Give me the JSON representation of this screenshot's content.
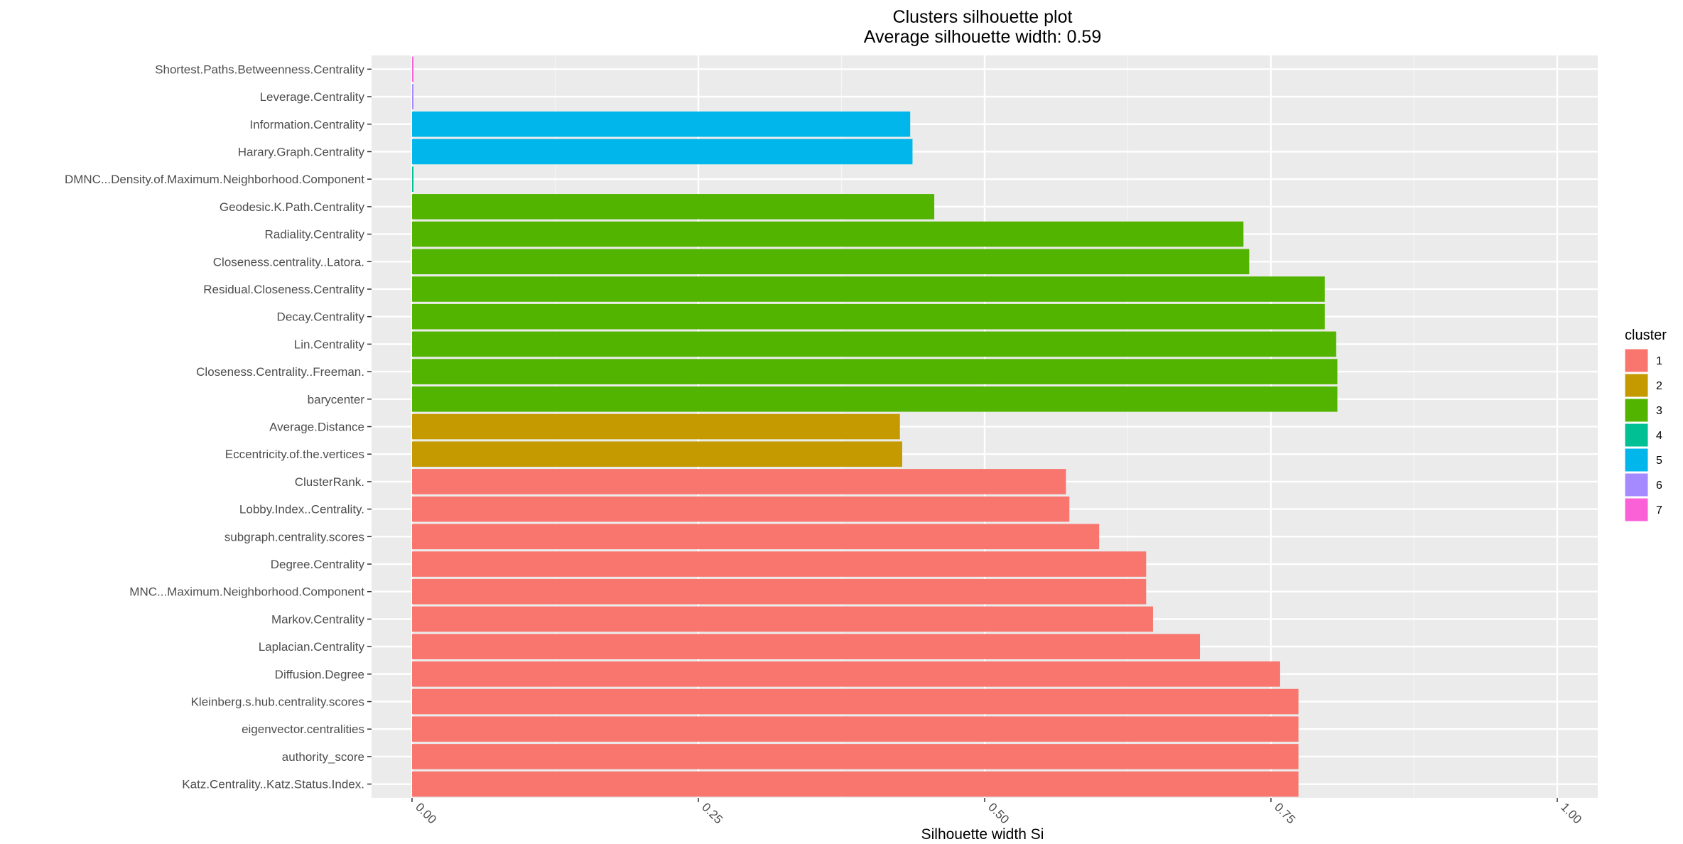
{
  "chart_data": {
    "type": "bar",
    "orientation": "horizontal",
    "title": "Clusters silhouette plot",
    "subtitle": "Average silhouette width: 0.59",
    "xlabel": "Silhouette width Si",
    "ylabel": "",
    "xlim": [
      -0.0,
      1.0
    ],
    "x_ticks": [
      "0.00",
      "0.25",
      "0.50",
      "0.75",
      "1.00"
    ],
    "x_tick_values": [
      0.0,
      0.25,
      0.5,
      0.75,
      1.0
    ],
    "grid": true,
    "legend": {
      "title": "cluster",
      "placement": "right",
      "entries": [
        {
          "label": "1",
          "color": "#F8766D"
        },
        {
          "label": "2",
          "color": "#C49A00"
        },
        {
          "label": "3",
          "color": "#53B400"
        },
        {
          "label": "4",
          "color": "#00C094"
        },
        {
          "label": "5",
          "color": "#00B6EB"
        },
        {
          "label": "6",
          "color": "#A58AFF"
        },
        {
          "label": "7",
          "color": "#FB61D7"
        }
      ]
    },
    "bars": [
      {
        "label": "Shortest.Paths.Betweenness.Centrality",
        "value": 0.001,
        "cluster": "7"
      },
      {
        "label": "Leverage.Centrality",
        "value": 0.001,
        "cluster": "6"
      },
      {
        "label": "Information.Centrality",
        "value": 0.435,
        "cluster": "5"
      },
      {
        "label": "Harary.Graph.Centrality",
        "value": 0.437,
        "cluster": "5"
      },
      {
        "label": "DMNC...Density.of.Maximum.Neighborhood.Component",
        "value": 0.001,
        "cluster": "4"
      },
      {
        "label": "Geodesic.K.Path.Centrality",
        "value": 0.456,
        "cluster": "3"
      },
      {
        "label": "Radiality.Centrality",
        "value": 0.726,
        "cluster": "3"
      },
      {
        "label": "Closeness.centrality..Latora.",
        "value": 0.731,
        "cluster": "3"
      },
      {
        "label": "Residual.Closeness.Centrality",
        "value": 0.797,
        "cluster": "3"
      },
      {
        "label": "Decay.Centrality",
        "value": 0.797,
        "cluster": "3"
      },
      {
        "label": "Lin.Centrality",
        "value": 0.807,
        "cluster": "3"
      },
      {
        "label": "Closeness.Centrality..Freeman.",
        "value": 0.808,
        "cluster": "3"
      },
      {
        "label": "barycenter",
        "value": 0.808,
        "cluster": "3"
      },
      {
        "label": "Average.Distance",
        "value": 0.426,
        "cluster": "2"
      },
      {
        "label": "Eccentricity.of.the.vertices",
        "value": 0.428,
        "cluster": "2"
      },
      {
        "label": "ClusterRank.",
        "value": 0.571,
        "cluster": "1"
      },
      {
        "label": "Lobby.Index..Centrality.",
        "value": 0.574,
        "cluster": "1"
      },
      {
        "label": "subgraph.centrality.scores",
        "value": 0.6,
        "cluster": "1"
      },
      {
        "label": "Degree.Centrality",
        "value": 0.641,
        "cluster": "1"
      },
      {
        "label": "MNC...Maximum.Neighborhood.Component",
        "value": 0.641,
        "cluster": "1"
      },
      {
        "label": "Markov.Centrality",
        "value": 0.647,
        "cluster": "1"
      },
      {
        "label": "Laplacian.Centrality",
        "value": 0.688,
        "cluster": "1"
      },
      {
        "label": "Diffusion.Degree",
        "value": 0.758,
        "cluster": "1"
      },
      {
        "label": "Kleinberg.s.hub.centrality.scores",
        "value": 0.774,
        "cluster": "1"
      },
      {
        "label": "eigenvector.centralities",
        "value": 0.774,
        "cluster": "1"
      },
      {
        "label": "authority_score",
        "value": 0.774,
        "cluster": "1"
      },
      {
        "label": "Katz.Centrality..Katz.Status.Index.",
        "value": 0.774,
        "cluster": "1"
      }
    ]
  }
}
